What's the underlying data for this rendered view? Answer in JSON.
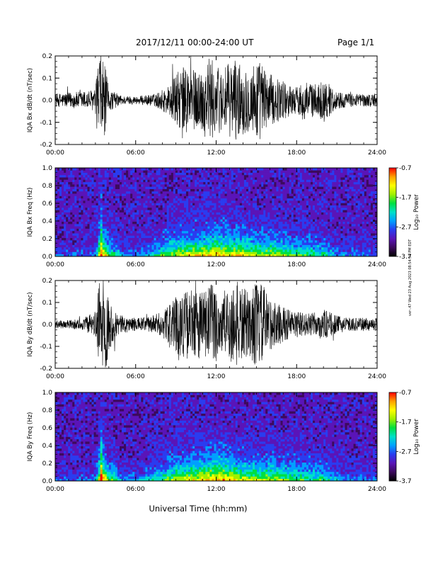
{
  "header": {
    "title": "2017/12/11   00:00-24:00 UT",
    "page": "Page 1/1"
  },
  "x_axis_title": "Universal Time (hh:mm)",
  "side_stamp": "ver-.47 Wed 23 Aug 2023 08:54:51 PM EDT",
  "colors": {
    "waveform": "#000000",
    "spectrogram_background": "#3a0a52",
    "colormap": [
      "#000000",
      "#3c0a5c",
      "#5a14b8",
      "#2a3cf0",
      "#00a0ff",
      "#00e0c8",
      "#00e040",
      "#a0f000",
      "#ffff00",
      "#ffa000",
      "#ff0000"
    ]
  },
  "chart_data": [
    {
      "type": "line",
      "name": "bx-waveform",
      "ylabel": "IQA Bx dB/dt (nT/sec)",
      "xlabel": "",
      "x_ticks": [
        "00:00",
        "06:00",
        "12:00",
        "18:00",
        "24:00"
      ],
      "xlim": [
        0,
        24
      ],
      "y_ticks": [
        "0.2",
        "0.1",
        "0.0",
        "-0.1",
        "-0.2"
      ],
      "ylim": [
        -0.2,
        0.2
      ],
      "grid": false,
      "envelope": {
        "x_hours": [
          0,
          1,
          2,
          3,
          3.2,
          3.6,
          4,
          5,
          6,
          7,
          7.5,
          8,
          8.5,
          9,
          9.5,
          10,
          10.5,
          11,
          11.5,
          12,
          12.5,
          13,
          13.5,
          14,
          14.5,
          15,
          15.5,
          16,
          16.5,
          17,
          17.5,
          18,
          18.5,
          19,
          19.5,
          20,
          21,
          22,
          23,
          24
        ],
        "amplitude": [
          0.03,
          0.035,
          0.04,
          0.05,
          0.2,
          0.2,
          0.05,
          0.02,
          0.018,
          0.025,
          0.03,
          0.05,
          0.07,
          0.12,
          0.15,
          0.16,
          0.13,
          0.15,
          0.2,
          0.16,
          0.14,
          0.17,
          0.18,
          0.16,
          0.14,
          0.2,
          0.16,
          0.12,
          0.1,
          0.09,
          0.07,
          0.06,
          0.09,
          0.08,
          0.07,
          0.1,
          0.04,
          0.03,
          0.03,
          0.03
        ]
      }
    },
    {
      "type": "heatmap",
      "name": "bx-spectrogram",
      "ylabel": "IQA Bx Freq (Hz)",
      "xlabel": "",
      "x_ticks": [
        "00:00",
        "06:00",
        "12:00",
        "18:00",
        "24:00"
      ],
      "xlim": [
        0,
        24
      ],
      "y_ticks": [
        "1.0",
        "0.8",
        "0.6",
        "0.4",
        "0.2",
        "0.0"
      ],
      "ylim": [
        0,
        1.0
      ],
      "colorbar": {
        "label": "Log₁₀ Power",
        "ticks": [
          "-0.7",
          "-1.7",
          "-2.7",
          "-3.7"
        ],
        "range": [
          -3.7,
          -0.7
        ]
      },
      "activity": {
        "x_hours": [
          0,
          2,
          3,
          3.4,
          4,
          5,
          6,
          7,
          8,
          8.5,
          9,
          10,
          11,
          12,
          13,
          14,
          15,
          16,
          17,
          18,
          19,
          20,
          21,
          22,
          24
        ],
        "level": [
          0.15,
          0.15,
          0.2,
          0.85,
          0.5,
          0.25,
          0.2,
          0.3,
          0.45,
          0.55,
          0.6,
          0.65,
          0.7,
          0.75,
          0.7,
          0.65,
          0.6,
          0.6,
          0.55,
          0.5,
          0.45,
          0.4,
          0.25,
          0.2,
          0.18
        ]
      }
    },
    {
      "type": "line",
      "name": "by-waveform",
      "ylabel": "IQA By dB/dt (nT/sec)",
      "xlabel": "",
      "x_ticks": [
        "00:00",
        "06:00",
        "12:00",
        "18:00",
        "24:00"
      ],
      "xlim": [
        0,
        24
      ],
      "y_ticks": [
        "0.2",
        "0.1",
        "0.0",
        "-0.1",
        "-0.2"
      ],
      "ylim": [
        -0.2,
        0.2
      ],
      "grid": false,
      "envelope": {
        "x_hours": [
          0,
          1,
          2,
          3,
          3.3,
          3.8,
          4,
          4.5,
          5,
          6,
          7,
          8,
          8.5,
          9,
          9.5,
          10,
          10.5,
          11,
          11.5,
          12,
          12.5,
          13,
          13.5,
          14,
          14.5,
          15,
          15.5,
          16,
          16.5,
          17,
          18,
          19,
          20,
          21,
          22,
          23,
          24
        ],
        "amplitude": [
          0.018,
          0.02,
          0.025,
          0.06,
          0.2,
          0.2,
          0.12,
          0.06,
          0.04,
          0.03,
          0.035,
          0.06,
          0.09,
          0.13,
          0.15,
          0.16,
          0.15,
          0.17,
          0.2,
          0.17,
          0.15,
          0.18,
          0.2,
          0.17,
          0.15,
          0.2,
          0.18,
          0.12,
          0.1,
          0.08,
          0.06,
          0.05,
          0.07,
          0.04,
          0.03,
          0.03,
          0.03
        ]
      }
    },
    {
      "type": "heatmap",
      "name": "by-spectrogram",
      "ylabel": "IQA By Freq (Hz)",
      "xlabel": "Universal Time (hh:mm)",
      "x_ticks": [
        "00:00",
        "06:00",
        "12:00",
        "18:00",
        "24:00"
      ],
      "xlim": [
        0,
        24
      ],
      "y_ticks": [
        "1.0",
        "0.8",
        "0.6",
        "0.4",
        "0.2",
        "0.0"
      ],
      "ylim": [
        0,
        1.0
      ],
      "colorbar": {
        "label": "Log₁₀ Power",
        "ticks": [
          "-0.7",
          "-1.7",
          "-2.7",
          "-3.7"
        ],
        "range": [
          -3.7,
          -0.7
        ]
      },
      "activity": {
        "x_hours": [
          0,
          2,
          3,
          3.4,
          4,
          5,
          6,
          7,
          8,
          8.5,
          9,
          10,
          11,
          12,
          13,
          14,
          15,
          16,
          17,
          18,
          19,
          20,
          21,
          22,
          24
        ],
        "level": [
          0.15,
          0.15,
          0.2,
          0.9,
          0.55,
          0.25,
          0.2,
          0.3,
          0.45,
          0.55,
          0.6,
          0.65,
          0.7,
          0.78,
          0.72,
          0.65,
          0.62,
          0.6,
          0.55,
          0.5,
          0.45,
          0.42,
          0.25,
          0.2,
          0.18
        ]
      }
    }
  ]
}
